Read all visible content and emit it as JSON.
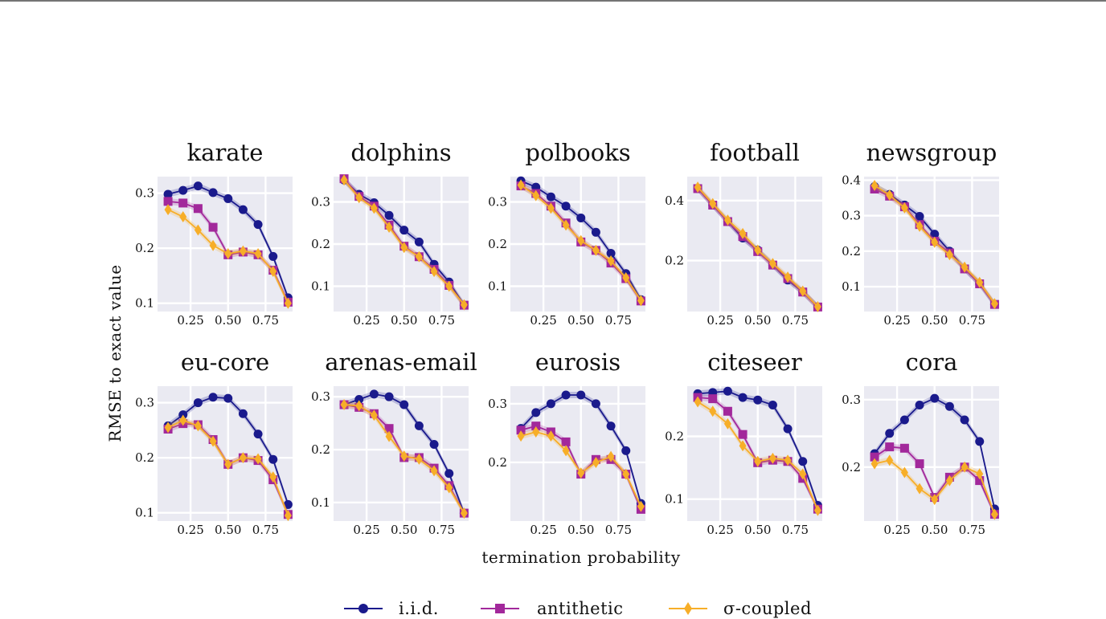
{
  "chart_data": {
    "type": "line",
    "x": [
      0.1,
      0.2,
      0.3,
      0.4,
      0.5,
      0.6,
      0.7,
      0.8,
      0.9
    ],
    "xlabel": "termination probability",
    "ylabel": "RMSE to exact value",
    "x_ticks": [
      "0.25",
      "0.50",
      "0.75"
    ],
    "x_tick_values": [
      0.25,
      0.5,
      0.75
    ],
    "xlim": [
      0.03,
      0.93
    ],
    "legend": [
      {
        "name": "i.i.d.",
        "color": "#1a1a8c",
        "marker": "circle"
      },
      {
        "name": "antithetic",
        "color": "#a2289b",
        "marker": "square"
      },
      {
        "name": "σ-coupled",
        "color": "#f7ae28",
        "marker": "diamond"
      }
    ],
    "panels": [
      {
        "title": "karate",
        "ylim": [
          0.085,
          0.33
        ],
        "yticks": [
          0.1,
          0.2,
          0.3
        ],
        "ytick_labels": [
          "0.1",
          "0.2",
          "0.3"
        ],
        "series": [
          [
            0.298,
            0.305,
            0.313,
            0.301,
            0.29,
            0.27,
            0.243,
            0.185,
            0.11
          ],
          [
            0.285,
            0.282,
            0.272,
            0.238,
            0.188,
            0.193,
            0.188,
            0.16,
            0.102
          ],
          [
            0.27,
            0.257,
            0.233,
            0.205,
            0.19,
            0.195,
            0.19,
            0.158,
            0.1
          ]
        ]
      },
      {
        "title": "dolphins",
        "ylim": [
          0.04,
          0.36
        ],
        "yticks": [
          0.1,
          0.2,
          0.3
        ],
        "ytick_labels": [
          "0.1",
          "0.2",
          "0.3"
        ],
        "series": [
          [
            0.352,
            0.318,
            0.298,
            0.268,
            0.233,
            0.205,
            0.152,
            0.11,
            0.055
          ],
          [
            0.355,
            0.313,
            0.29,
            0.245,
            0.195,
            0.17,
            0.14,
            0.102,
            0.055
          ],
          [
            0.352,
            0.31,
            0.285,
            0.24,
            0.192,
            0.17,
            0.135,
            0.1,
            0.056
          ]
        ]
      },
      {
        "title": "polbooks",
        "ylim": [
          0.04,
          0.36
        ],
        "yticks": [
          0.1,
          0.2,
          0.3
        ],
        "ytick_labels": [
          "0.1",
          "0.2",
          "0.3"
        ],
        "series": [
          [
            0.35,
            0.335,
            0.312,
            0.29,
            0.262,
            0.228,
            0.178,
            0.13,
            0.068
          ],
          [
            0.338,
            0.32,
            0.29,
            0.25,
            0.205,
            0.185,
            0.155,
            0.118,
            0.065
          ],
          [
            0.34,
            0.315,
            0.285,
            0.245,
            0.208,
            0.185,
            0.16,
            0.12,
            0.066
          ]
        ]
      },
      {
        "title": "football",
        "ylim": [
          0.03,
          0.48
        ],
        "yticks": [
          0.2,
          0.4
        ],
        "ytick_labels": [
          "0.2",
          "0.4"
        ],
        "series": [
          [
            0.44,
            0.385,
            0.33,
            0.275,
            0.235,
            0.185,
            0.135,
            0.095,
            0.045
          ],
          [
            0.44,
            0.385,
            0.33,
            0.28,
            0.23,
            0.185,
            0.14,
            0.095,
            0.045
          ],
          [
            0.445,
            0.39,
            0.335,
            0.29,
            0.235,
            0.19,
            0.145,
            0.098,
            0.046
          ]
        ]
      },
      {
        "title": "newsgroup",
        "ylim": [
          0.03,
          0.41
        ],
        "yticks": [
          0.1,
          0.2,
          0.3,
          0.4
        ],
        "ytick_labels": [
          "0.1",
          "0.2",
          "0.3",
          "0.4"
        ],
        "series": [
          [
            0.382,
            0.36,
            0.33,
            0.298,
            0.248,
            0.2,
            0.15,
            0.108,
            0.05
          ],
          [
            0.375,
            0.355,
            0.325,
            0.275,
            0.228,
            0.195,
            0.15,
            0.108,
            0.05
          ],
          [
            0.385,
            0.358,
            0.322,
            0.27,
            0.225,
            0.19,
            0.155,
            0.112,
            0.052
          ]
        ]
      },
      {
        "title": "eu-core",
        "ylim": [
          0.085,
          0.33
        ],
        "yticks": [
          0.1,
          0.2,
          0.3
        ],
        "ytick_labels": [
          "0.1",
          "0.2",
          "0.3"
        ],
        "series": [
          [
            0.258,
            0.278,
            0.3,
            0.31,
            0.308,
            0.28,
            0.243,
            0.197,
            0.115
          ],
          [
            0.252,
            0.262,
            0.26,
            0.233,
            0.188,
            0.2,
            0.195,
            0.16,
            0.097
          ],
          [
            0.255,
            0.268,
            0.258,
            0.23,
            0.188,
            0.2,
            0.198,
            0.165,
            0.095
          ]
        ]
      },
      {
        "title": "arenas-email",
        "ylim": [
          0.065,
          0.32
        ],
        "yticks": [
          0.1,
          0.2,
          0.3
        ],
        "ytick_labels": [
          "0.1",
          "0.2",
          "0.3"
        ],
        "series": [
          [
            0.285,
            0.295,
            0.305,
            0.3,
            0.285,
            0.245,
            0.21,
            0.155,
            0.08
          ],
          [
            0.285,
            0.28,
            0.268,
            0.24,
            0.185,
            0.185,
            0.165,
            0.132,
            0.08
          ],
          [
            0.285,
            0.283,
            0.265,
            0.225,
            0.188,
            0.182,
            0.16,
            0.128,
            0.08
          ]
        ]
      },
      {
        "title": "eurosis",
        "ylim": [
          0.1,
          0.33
        ],
        "yticks": [
          0.2,
          0.3
        ],
        "ytick_labels": [
          "0.2",
          "0.3"
        ],
        "series": [
          [
            0.258,
            0.285,
            0.3,
            0.315,
            0.315,
            0.3,
            0.262,
            0.22,
            0.13
          ],
          [
            0.255,
            0.262,
            0.252,
            0.235,
            0.18,
            0.205,
            0.205,
            0.18,
            0.12
          ],
          [
            0.245,
            0.252,
            0.245,
            0.22,
            0.182,
            0.2,
            0.21,
            0.18,
            0.125
          ]
        ]
      },
      {
        "title": "citeseer",
        "ylim": [
          0.065,
          0.28
        ],
        "yticks": [
          0.1,
          0.2
        ],
        "ytick_labels": [
          "0.1",
          "0.2"
        ],
        "series": [
          [
            0.268,
            0.27,
            0.272,
            0.262,
            0.258,
            0.25,
            0.212,
            0.16,
            0.09
          ],
          [
            0.262,
            0.26,
            0.24,
            0.203,
            0.158,
            0.162,
            0.16,
            0.133,
            0.084
          ],
          [
            0.255,
            0.24,
            0.22,
            0.185,
            0.16,
            0.165,
            0.162,
            0.14,
            0.082
          ]
        ]
      },
      {
        "title": "cora",
        "ylim": [
          0.12,
          0.32
        ],
        "yticks": [
          0.2,
          0.3
        ],
        "ytick_labels": [
          "0.2",
          "0.3"
        ],
        "series": [
          [
            0.22,
            0.25,
            0.27,
            0.292,
            0.302,
            0.29,
            0.27,
            0.238,
            0.138
          ],
          [
            0.215,
            0.23,
            0.228,
            0.205,
            0.155,
            0.185,
            0.2,
            0.18,
            0.13
          ],
          [
            0.205,
            0.21,
            0.192,
            0.168,
            0.152,
            0.18,
            0.2,
            0.19,
            0.13
          ]
        ]
      }
    ]
  }
}
